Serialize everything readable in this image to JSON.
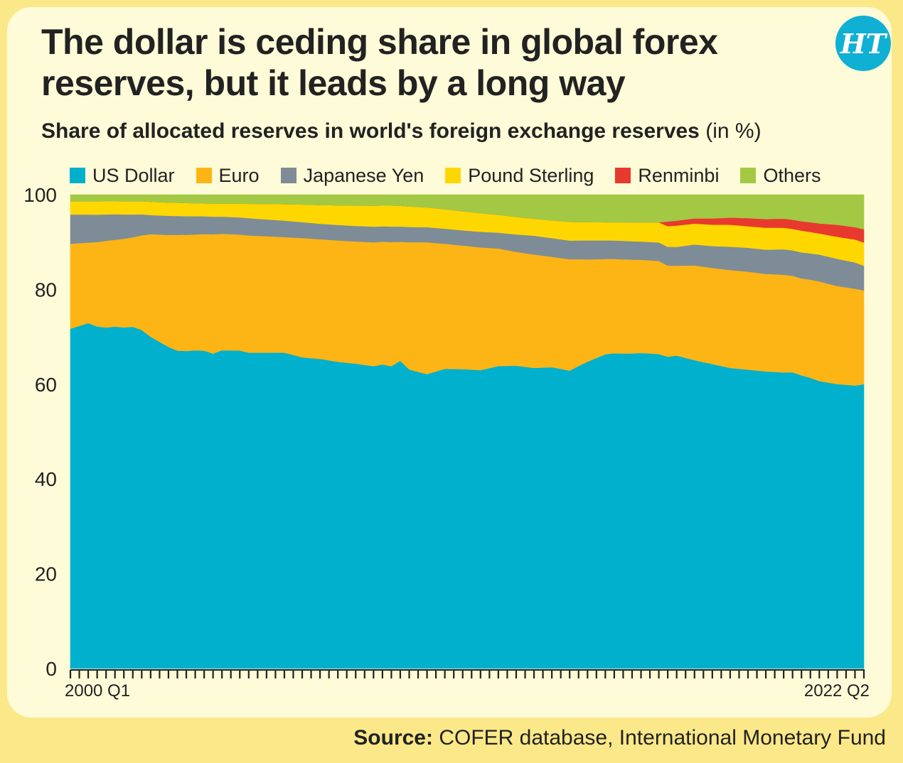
{
  "header": {
    "title": "The dollar is ceding share in global forex reserves, but it leads by a long way",
    "subtitle": "Share of allocated reserves in world's foreign exchange reserves",
    "subtitle_unit": "(in %)",
    "logo_text": "HT"
  },
  "source": {
    "label": "Source:",
    "text": "COFER database, International Monetary Fund"
  },
  "colors": {
    "page_border": "#fbe889",
    "card": "#fefbd8",
    "logo": "#0fb0d4"
  },
  "chart_data": {
    "type": "area",
    "stacked": true,
    "title": "The dollar is ceding share in global forex reserves, but it leads by a long way",
    "subtitle": "Share of allocated reserves in world's foreign exchange reserves (in %)",
    "x_start": "2000 Q1",
    "x_end": "2022 Q2",
    "x_tick_labels": [
      "2000 Q1",
      "2022 Q2"
    ],
    "n_points": 90,
    "y_ticks": [
      0,
      20,
      40,
      60,
      80,
      100
    ],
    "ylim": [
      0,
      100
    ],
    "grid": false,
    "legend_position": "top",
    "series": [
      {
        "name": "US Dollar",
        "color": "#00b0cd",
        "anchors": [
          [
            0,
            72.0
          ],
          [
            2,
            73.0
          ],
          [
            3,
            72.0
          ],
          [
            5,
            73.5
          ],
          [
            6,
            72.5
          ],
          [
            8,
            72.5
          ],
          [
            9,
            69.5
          ],
          [
            11,
            67.5
          ],
          [
            13,
            67.0
          ],
          [
            15,
            67.5
          ],
          [
            16,
            66.0
          ],
          [
            17,
            68.0
          ],
          [
            19,
            67.5
          ],
          [
            20,
            66.0
          ],
          [
            22,
            66.5
          ],
          [
            24,
            67.0
          ],
          [
            26,
            66.5
          ],
          [
            28,
            66.0
          ],
          [
            30,
            65.0
          ],
          [
            32,
            64.5
          ],
          [
            34,
            63.5
          ],
          [
            35,
            65.0
          ],
          [
            36,
            64.5
          ],
          [
            37,
            66.0
          ],
          [
            38,
            63.5
          ],
          [
            40,
            62.5
          ],
          [
            42,
            63.5
          ],
          [
            44,
            63.0
          ],
          [
            46,
            62.0
          ],
          [
            48,
            63.0
          ],
          [
            50,
            62.5
          ],
          [
            52,
            62.3
          ],
          [
            54,
            62.8
          ],
          [
            56,
            62.3
          ],
          [
            57,
            63.5
          ],
          [
            58,
            64.5
          ],
          [
            60,
            66.0
          ],
          [
            61,
            66.5
          ],
          [
            63,
            66.0
          ],
          [
            65,
            66.0
          ],
          [
            67,
            65.8
          ],
          [
            68,
            66.2
          ],
          [
            70,
            65.0
          ],
          [
            72,
            64.0
          ],
          [
            74,
            63.0
          ],
          [
            76,
            62.5
          ],
          [
            78,
            62.2
          ],
          [
            80,
            61.8
          ],
          [
            81,
            62.8
          ],
          [
            83,
            61.2
          ],
          [
            84,
            60.0
          ],
          [
            86,
            59.5
          ],
          [
            88,
            59.3
          ],
          [
            89,
            60.0
          ]
        ]
      },
      {
        "name": "Euro",
        "color": "#fdb515",
        "anchors": [
          [
            0,
            18.0
          ],
          [
            2,
            17.0
          ],
          [
            4,
            18.5
          ],
          [
            7,
            19.0
          ],
          [
            9,
            21.5
          ],
          [
            12,
            24.5
          ],
          [
            14,
            24.5
          ],
          [
            16,
            25.0
          ],
          [
            20,
            24.5
          ],
          [
            24,
            24.5
          ],
          [
            26,
            25.5
          ],
          [
            28,
            25.5
          ],
          [
            30,
            25.7
          ],
          [
            34,
            26.0
          ],
          [
            36,
            26.5
          ],
          [
            37,
            25.5
          ],
          [
            38,
            27.0
          ],
          [
            40,
            28.0
          ],
          [
            42,
            26.5
          ],
          [
            44,
            26.0
          ],
          [
            46,
            25.5
          ],
          [
            48,
            24.5
          ],
          [
            50,
            23.5
          ],
          [
            52,
            23.5
          ],
          [
            54,
            23.0
          ],
          [
            56,
            23.3
          ],
          [
            58,
            21.5
          ],
          [
            60,
            20.0
          ],
          [
            62,
            19.8
          ],
          [
            64,
            19.5
          ],
          [
            66,
            19.5
          ],
          [
            68,
            19.0
          ],
          [
            70,
            20.0
          ],
          [
            72,
            20.2
          ],
          [
            74,
            20.5
          ],
          [
            76,
            20.5
          ],
          [
            78,
            20.4
          ],
          [
            80,
            20.4
          ],
          [
            82,
            20.5
          ],
          [
            84,
            20.8
          ],
          [
            86,
            20.5
          ],
          [
            88,
            20.3
          ],
          [
            89,
            19.8
          ]
        ]
      },
      {
        "name": "Japanese Yen",
        "color": "#7e8c97",
        "anchors": [
          [
            0,
            6.2
          ],
          [
            5,
            5.5
          ],
          [
            8,
            4.5
          ],
          [
            9,
            4.0
          ],
          [
            12,
            4.0
          ],
          [
            16,
            3.7
          ],
          [
            20,
            3.6
          ],
          [
            24,
            3.5
          ],
          [
            28,
            3.3
          ],
          [
            32,
            3.3
          ],
          [
            36,
            3.3
          ],
          [
            40,
            3.2
          ],
          [
            44,
            3.2
          ],
          [
            48,
            3.3
          ],
          [
            50,
            3.6
          ],
          [
            52,
            3.9
          ],
          [
            54,
            3.9
          ],
          [
            56,
            3.9
          ],
          [
            58,
            4.0
          ],
          [
            60,
            3.9
          ],
          [
            62,
            3.9
          ],
          [
            64,
            3.8
          ],
          [
            66,
            3.9
          ],
          [
            68,
            4.0
          ],
          [
            70,
            4.4
          ],
          [
            72,
            4.6
          ],
          [
            74,
            4.9
          ],
          [
            76,
            5.0
          ],
          [
            78,
            5.1
          ],
          [
            80,
            5.3
          ],
          [
            82,
            5.5
          ],
          [
            84,
            5.6
          ],
          [
            86,
            5.7
          ],
          [
            88,
            5.5
          ],
          [
            89,
            5.2
          ]
        ]
      },
      {
        "name": "Pound Sterling",
        "color": "#ffd700",
        "anchors": [
          [
            0,
            2.8
          ],
          [
            4,
            2.8
          ],
          [
            8,
            2.8
          ],
          [
            12,
            2.8
          ],
          [
            16,
            2.7
          ],
          [
            20,
            3.0
          ],
          [
            24,
            3.5
          ],
          [
            28,
            4.0
          ],
          [
            32,
            4.3
          ],
          [
            36,
            4.5
          ],
          [
            40,
            4.2
          ],
          [
            44,
            4.0
          ],
          [
            48,
            3.7
          ],
          [
            52,
            3.5
          ],
          [
            56,
            3.9
          ],
          [
            60,
            3.8
          ],
          [
            64,
            4.0
          ],
          [
            66,
            4.2
          ],
          [
            68,
            4.5
          ],
          [
            70,
            4.4
          ],
          [
            72,
            4.5
          ],
          [
            74,
            4.6
          ],
          [
            76,
            4.5
          ],
          [
            78,
            4.6
          ],
          [
            80,
            4.5
          ],
          [
            82,
            4.6
          ],
          [
            84,
            4.4
          ],
          [
            86,
            4.6
          ],
          [
            88,
            4.8
          ],
          [
            89,
            4.9
          ]
        ]
      },
      {
        "name": "Renminbi",
        "color": "#e8392e",
        "anchors": [
          [
            0,
            0
          ],
          [
            66,
            0
          ],
          [
            67,
            1.0
          ],
          [
            70,
            1.1
          ],
          [
            72,
            1.3
          ],
          [
            74,
            1.5
          ],
          [
            76,
            1.7
          ],
          [
            78,
            1.8
          ],
          [
            80,
            1.9
          ],
          [
            82,
            2.0
          ],
          [
            84,
            2.1
          ],
          [
            86,
            2.5
          ],
          [
            88,
            2.6
          ],
          [
            89,
            2.8
          ]
        ]
      },
      {
        "name": "Others",
        "color": "#a3c944",
        "anchors": [
          [
            0,
            1.4
          ],
          [
            4,
            1.4
          ],
          [
            8,
            1.4
          ],
          [
            12,
            1.7
          ],
          [
            16,
            1.9
          ],
          [
            20,
            1.9
          ],
          [
            24,
            2.0
          ],
          [
            28,
            2.2
          ],
          [
            32,
            2.3
          ],
          [
            36,
            2.3
          ],
          [
            40,
            2.7
          ],
          [
            44,
            3.5
          ],
          [
            48,
            4.2
          ],
          [
            52,
            5.0
          ],
          [
            56,
            5.7
          ],
          [
            60,
            5.8
          ],
          [
            64,
            5.8
          ],
          [
            66,
            5.8
          ],
          [
            68,
            5.5
          ],
          [
            70,
            5.0
          ],
          [
            72,
            5.0
          ],
          [
            74,
            4.8
          ],
          [
            76,
            4.9
          ],
          [
            78,
            5.1
          ],
          [
            80,
            5.0
          ],
          [
            82,
            5.6
          ],
          [
            84,
            6.0
          ],
          [
            86,
            6.3
          ],
          [
            88,
            6.8
          ],
          [
            89,
            7.3
          ]
        ]
      }
    ]
  }
}
